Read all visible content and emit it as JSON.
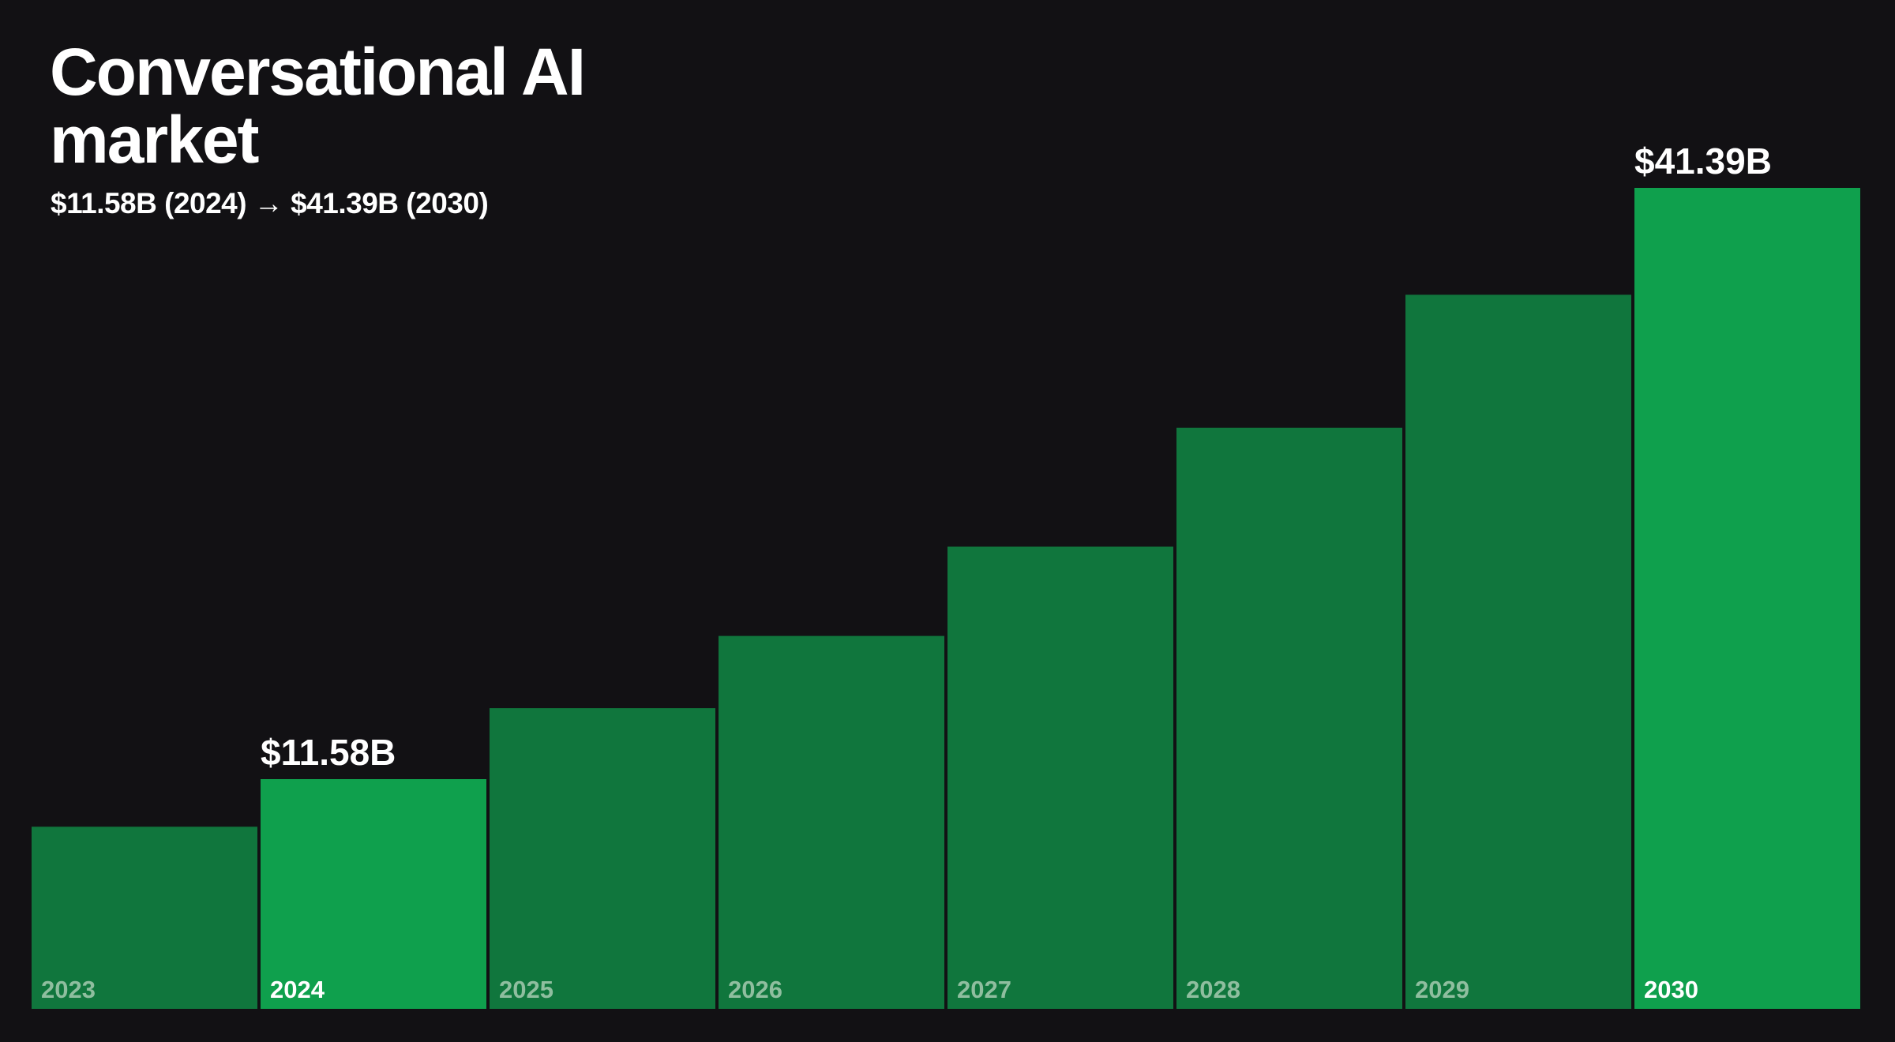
{
  "title": "Conversational AI market",
  "subtitle": "$11.58B (2024) → $41.39B (2030)",
  "colors": {
    "background": "#121114",
    "bar": "#10763d",
    "bar_highlight": "#0fa04d",
    "label_dim": "#8fbe9f",
    "label_bright": "#ffffff"
  },
  "chart_data": {
    "type": "bar",
    "categories": [
      "2023",
      "2024",
      "2025",
      "2026",
      "2027",
      "2028",
      "2029",
      "2030"
    ],
    "values": [
      9.18,
      11.58,
      15.16,
      18.8,
      23.3,
      29.3,
      36.0,
      41.39
    ],
    "highlighted": [
      "2024",
      "2030"
    ],
    "data_labels": {
      "2024": "$11.58B",
      "2030": "$41.39B"
    },
    "ylim": [
      0,
      41.39
    ],
    "grid": false,
    "legend": "none"
  }
}
